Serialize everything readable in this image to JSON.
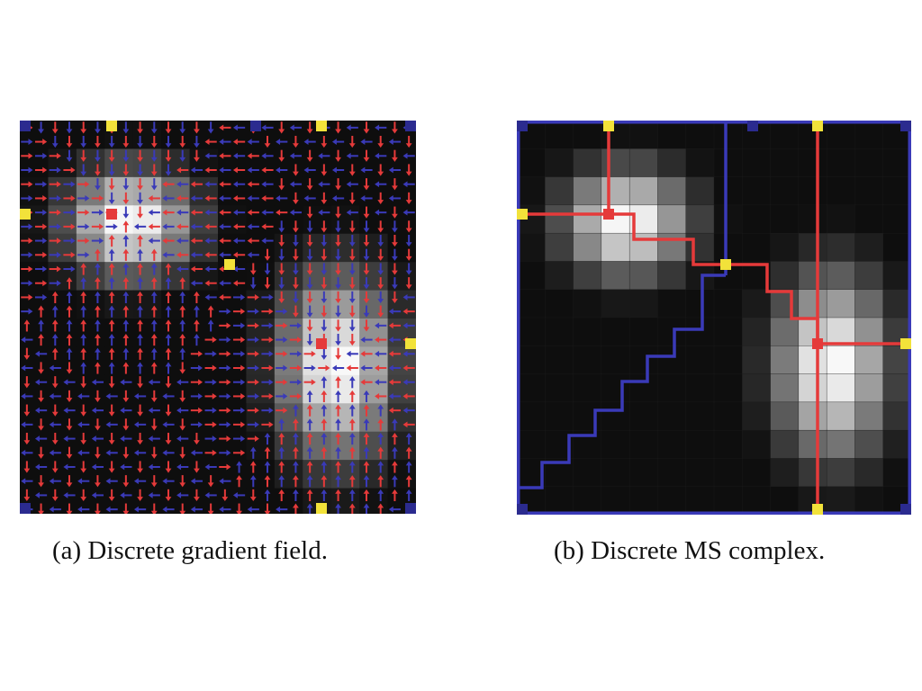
{
  "figure": {
    "caption_a": "(a)  Discrete gradient field.",
    "caption_b": "(b)  Discrete MS complex."
  },
  "colors": {
    "background": "#0a0a0a",
    "minimum_marker": "#2b2b8f",
    "saddle_marker": "#f2e23a",
    "maximum_marker": "#e53a3a",
    "descending_arrow": "#e53a3a",
    "ascending_arrow": "#3a3ab8",
    "separatrix_blue": "#3a3ab8",
    "separatrix_red": "#e53a3a"
  }
}
